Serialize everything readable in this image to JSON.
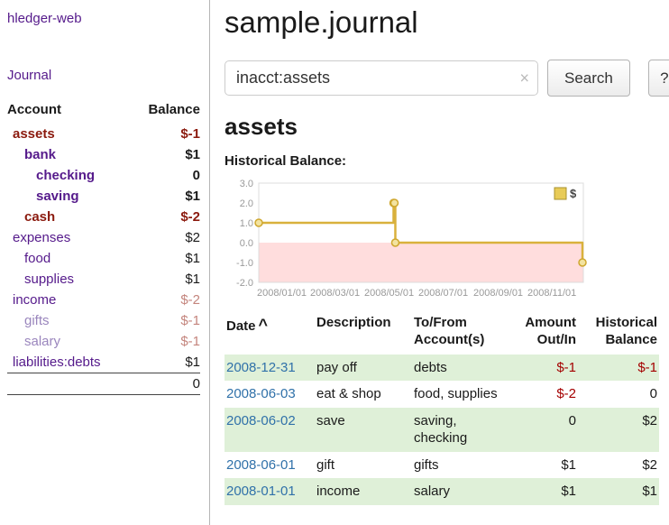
{
  "colors": {
    "link_purple": "#551a8b",
    "muted_purple": "#9a86bd",
    "negative_strong": "#8b1a0e",
    "negative_table": "#a40000",
    "negative_muted": "#c4857d",
    "date_link_blue": "#3071a9",
    "row_stripe_green": "#dff0d8",
    "chart_line_gold": "#d9b13c",
    "chart_negative_fill": "#ffdddd"
  },
  "app": {
    "title": "hledger-web"
  },
  "sidebar": {
    "journal_link": "Journal",
    "accounts": {
      "header_account": "Account",
      "header_balance": "Balance",
      "rows": [
        {
          "name": "assets",
          "balance": "$-1",
          "indent": 0,
          "bold": true,
          "name_negative": true,
          "muted": false,
          "balance_class": "neg-strong"
        },
        {
          "name": "bank",
          "balance": "$1",
          "indent": 1,
          "bold": true,
          "name_negative": false,
          "muted": false,
          "balance_class": ""
        },
        {
          "name": "checking",
          "balance": "0",
          "indent": 2,
          "bold": true,
          "name_negative": false,
          "muted": false,
          "balance_class": ""
        },
        {
          "name": "saving",
          "balance": "$1",
          "indent": 2,
          "bold": true,
          "name_negative": false,
          "muted": false,
          "balance_class": ""
        },
        {
          "name": "cash",
          "balance": "$-2",
          "indent": 1,
          "bold": true,
          "name_negative": true,
          "muted": false,
          "balance_class": "neg-strong"
        },
        {
          "name": "expenses",
          "balance": "$2",
          "indent": 0,
          "bold": false,
          "name_negative": false,
          "muted": false,
          "balance_class": ""
        },
        {
          "name": "food",
          "balance": "$1",
          "indent": 1,
          "bold": false,
          "name_negative": false,
          "muted": false,
          "balance_class": ""
        },
        {
          "name": "supplies",
          "balance": "$1",
          "indent": 1,
          "bold": false,
          "name_negative": false,
          "muted": false,
          "balance_class": ""
        },
        {
          "name": "income",
          "balance": "$-2",
          "indent": 0,
          "bold": false,
          "name_negative": false,
          "muted": false,
          "balance_class": "neg-muted"
        },
        {
          "name": "gifts",
          "balance": "$-1",
          "indent": 1,
          "bold": false,
          "name_negative": false,
          "muted": true,
          "balance_class": "neg-muted"
        },
        {
          "name": "salary",
          "balance": "$-1",
          "indent": 1,
          "bold": false,
          "name_negative": false,
          "muted": true,
          "balance_class": "neg-muted"
        },
        {
          "name": "liabilities:debts",
          "balance": "$1",
          "indent": 0,
          "bold": false,
          "name_negative": false,
          "muted": false,
          "balance_class": ""
        }
      ],
      "total": "0"
    }
  },
  "main": {
    "title": "sample.journal",
    "search": {
      "value": "inacct:assets",
      "clear_icon": "×",
      "search_button": "Search",
      "help_button": "?"
    },
    "account_heading": "assets",
    "chart_heading": "Historical Balance:"
  },
  "chart_data": {
    "type": "line",
    "step": true,
    "title": "Historical Balance:",
    "series": [
      {
        "name": "$",
        "points": [
          {
            "date": "2008-01-01",
            "value": 1
          },
          {
            "date": "2008-06-01",
            "value": 2
          },
          {
            "date": "2008-06-02",
            "value": 2
          },
          {
            "date": "2008-06-03",
            "value": 0
          },
          {
            "date": "2008-12-31",
            "value": -1
          }
        ]
      }
    ],
    "ylim": [
      -2.0,
      3.0
    ],
    "yticks": [
      "3.0",
      "2.0",
      "1.0",
      "0.0",
      "-1.0",
      "-2.0"
    ],
    "xticks": [
      "2008/01/01",
      "2008/03/01",
      "2008/05/01",
      "2008/07/01",
      "2008/09/01",
      "2008/11/01"
    ],
    "x_range": [
      "2008-01-01",
      "2009-01-01"
    ],
    "legend": {
      "label": "$",
      "position": "top-right"
    },
    "grid": false
  },
  "transactions": {
    "headers": {
      "date": "Date",
      "sort_indicator": "^",
      "description": "Description",
      "accounts": "To/From Account(s)",
      "amount": "Amount Out/In",
      "balance": "Historical Balance"
    },
    "rows": [
      {
        "date": "2008-12-31",
        "description": "pay off",
        "accounts": "debts",
        "amount": "$-1",
        "amount_negative": true,
        "balance": "$-1",
        "balance_negative": true
      },
      {
        "date": "2008-06-03",
        "description": "eat & shop",
        "accounts": "food, supplies",
        "amount": "$-2",
        "amount_negative": true,
        "balance": "0",
        "balance_negative": false
      },
      {
        "date": "2008-06-02",
        "description": "save",
        "accounts": "saving, checking",
        "amount": "0",
        "amount_negative": false,
        "balance": "$2",
        "balance_negative": false
      },
      {
        "date": "2008-06-01",
        "description": "gift",
        "accounts": "gifts",
        "amount": "$1",
        "amount_negative": false,
        "balance": "$2",
        "balance_negative": false
      },
      {
        "date": "2008-01-01",
        "description": "income",
        "accounts": "salary",
        "amount": "$1",
        "amount_negative": false,
        "balance": "$1",
        "balance_negative": false
      }
    ]
  }
}
